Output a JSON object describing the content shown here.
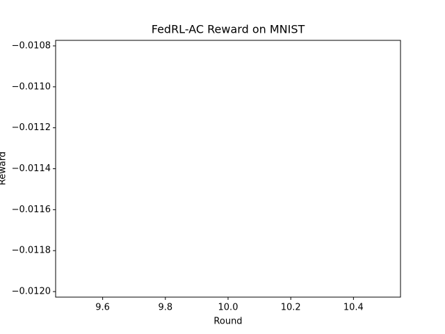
{
  "chart_data": {
    "type": "line",
    "title": "FedRL-AC Reward on MNIST",
    "x_label": "Round",
    "y_label": "Reward",
    "xlim": [
      9.45,
      10.55
    ],
    "xticks": [
      9.6,
      9.8,
      {
        "value": 10,
        "label": "10.0"
      },
      10.2,
      10.4
    ],
    "ylim": [
      -0.012027,
      -0.010773
    ],
    "yticks": [
      {
        "value": -0.012,
        "label": "−0.0120"
      },
      {
        "value": -0.0118,
        "label": "−0.0118"
      },
      {
        "value": -0.0116,
        "label": "−0.0116"
      },
      {
        "value": -0.0114,
        "label": "−0.0114"
      },
      {
        "value": -0.0112,
        "label": "−0.0112"
      },
      {
        "value": -0.011,
        "label": "−0.0110"
      },
      {
        "value": -0.0108,
        "label": "−0.0108"
      }
    ],
    "grid": false
  }
}
